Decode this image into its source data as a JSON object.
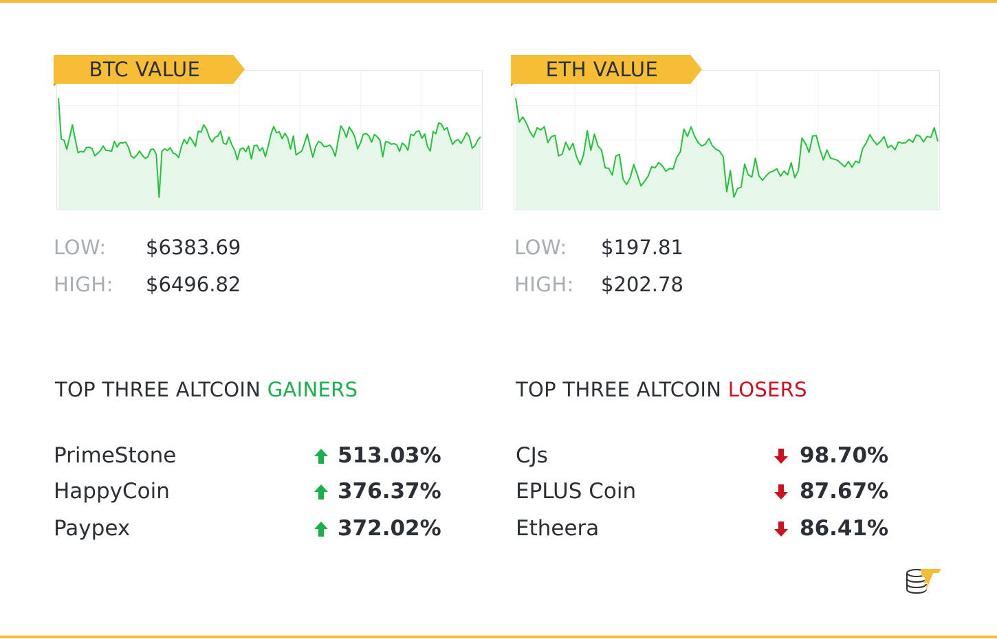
{
  "colors": {
    "accent": "#f6bd35",
    "line": "#22c33a",
    "fill": "#e6f6e8",
    "gain": "#17b34a",
    "loss": "#d0101e",
    "muted": "#a6adb4"
  },
  "btc": {
    "ribbon_label": "BTC VALUE",
    "low_label": "LOW:",
    "low_value": "$6383.69",
    "high_label": "HIGH:",
    "high_value": "$6496.82"
  },
  "eth": {
    "ribbon_label": "ETH VALUE",
    "low_label": "LOW:",
    "low_value": "$197.81",
    "high_label": "HIGH:",
    "high_value": "$202.78"
  },
  "gainers": {
    "title_prefix": "TOP THREE ALTCOIN",
    "title_highlight": "GAINERS",
    "items": [
      {
        "name": "PrimeStone",
        "change": "513.03%",
        "direction": "up"
      },
      {
        "name": "HappyCoin",
        "change": "376.37%",
        "direction": "up"
      },
      {
        "name": "Paypex",
        "change": "372.02%",
        "direction": "up"
      }
    ]
  },
  "losers": {
    "title_prefix": "TOP THREE ALTCOIN",
    "title_highlight": "LOSERS",
    "items": [
      {
        "name": "CJs",
        "change": "98.70%",
        "direction": "down"
      },
      {
        "name": "EPLUS Coin",
        "change": "87.67%",
        "direction": "down"
      },
      {
        "name": "Etheera",
        "change": "86.41%",
        "direction": "down"
      }
    ]
  },
  "chart_data": [
    {
      "type": "area",
      "series": [
        {
          "values": [
            6496.82,
            6450.2,
            6448.9,
            6438.5,
            6452.3,
            6466.4,
            6450.1,
            6434.6,
            6436.2,
            6435.5,
            6440.4,
            6440.9,
            6439.3,
            6431.1,
            6433.9,
            6436.8,
            6442.3,
            6437.2,
            6437.0,
            6436.2,
            6447.5,
            6441.1,
            6446.1,
            6445.7,
            6446.7,
            6441.1,
            6430.9,
            6428.5,
            6431.8,
            6436.5,
            6431.7,
            6428.1,
            6429.9,
            6438.2,
            6438.7,
            6432.6,
            6383.69,
            6436.3,
            6439.0,
            6437.1,
            6440.3,
            6434.3,
            6432.7,
            6429.0,
            6441.6,
            6449.8,
            6444.9,
            6452.4,
            6447.7,
            6441.9,
            6459.1,
            6458.1,
            6466.6,
            6461.3,
            6451.6,
            6446.7,
            6452.1,
            6453.5,
            6459.3,
            6445.7,
            6444.2,
            6452.5,
            6443.9,
            6437.6,
            6426.6,
            6438.5,
            6440.1,
            6435.7,
            6442.2,
            6427.4,
            6442.6,
            6443.1,
            6436.7,
            6440.3,
            6430.0,
            6441.9,
            6455.7,
            6464.6,
            6457.4,
            6458.5,
            6450.6,
            6456.8,
            6451.6,
            6438.6,
            6453.7,
            6432.0,
            6434.3,
            6436.4,
            6445.3,
            6455.7,
            6441.8,
            6429.5,
            6441.5,
            6447.5,
            6445.8,
            6441.4,
            6441.9,
            6443.3,
            6439.0,
            6430.5,
            6447.8,
            6465.2,
            6460.2,
            6452.2,
            6463.9,
            6459.2,
            6452.6,
            6438.9,
            6445.5,
            6455.4,
            6456.6,
            6454.0,
            6446.7,
            6455.3,
            6452.9,
            6448.8,
            6429.9,
            6447.2,
            6446.8,
            6444.3,
            6445.0,
            6443.6,
            6436.2,
            6445.6,
            6442.9,
            6437.4,
            6455.6,
            6454.1,
            6458.6,
            6459.6,
            6451.1,
            6455.9,
            6441.5,
            6436.6,
            6458.7,
            6456.4,
            6468.6,
            6467.3,
            6460.7,
            6463.3,
            6452.8,
            6444.1,
            6448.1,
            6449.7,
            6445.2,
            6450.8,
            6457.3,
            6452.8,
            6439.7,
            6442.7,
            6449.4,
            6452.9
          ]
        }
      ]
    },
    {
      "type": "area",
      "series": [
        {
          "values": [
            202.78,
            201.59,
            201.84,
            201.53,
            201.09,
            200.82,
            201.3,
            201.19,
            201.35,
            200.55,
            200.85,
            200.92,
            199.88,
            199.97,
            200.57,
            200.18,
            200.52,
            199.84,
            199.45,
            199.97,
            201.15,
            200.16,
            200.98,
            200.38,
            200.17,
            199.29,
            199.26,
            198.92,
            199.88,
            199.96,
            198.72,
            198.45,
            198.79,
            199.45,
            198.95,
            198.38,
            198.6,
            198.86,
            199.34,
            199.29,
            199.55,
            199.39,
            199.11,
            199.25,
            199.22,
            199.81,
            200.08,
            201.23,
            200.86,
            201.34,
            200.88,
            200.55,
            200.38,
            200.47,
            200.76,
            200.38,
            200.22,
            200.12,
            199.85,
            198.08,
            199.15,
            197.81,
            198.24,
            198.31,
            199.47,
            198.94,
            198.82,
            199.77,
            198.88,
            198.66,
            198.88,
            199.06,
            199.12,
            199.24,
            198.87,
            199.13,
            198.93,
            199.54,
            198.79,
            199.15,
            200.78,
            200.51,
            200.06,
            200.89,
            200.91,
            200.23,
            199.68,
            200.18,
            199.77,
            199.72,
            199.66,
            199.49,
            199.34,
            199.6,
            199.31,
            199.62,
            199.54,
            200.26,
            200.54,
            200.95,
            200.66,
            200.44,
            200.62,
            200.85,
            200.3,
            200.41,
            200.2,
            200.59,
            200.52,
            200.55,
            200.72,
            200.57,
            200.94,
            200.87,
            200.59,
            200.86,
            200.81,
            201.3,
            200.62
          ]
        }
      ]
    }
  ]
}
